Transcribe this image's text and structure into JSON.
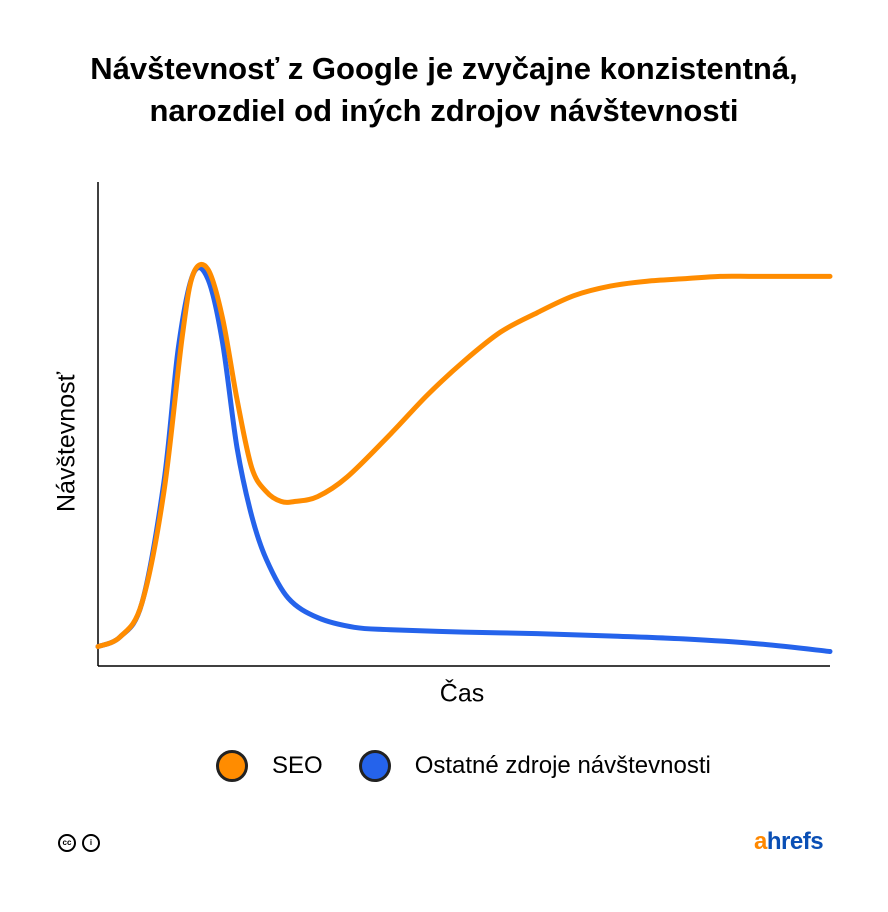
{
  "chart_data": {
    "type": "line",
    "title_lines": [
      "Návštevnosť z Google je zvyčajne konzistentná,",
      "narozdiel od iných zdrojov návštevnosti"
    ],
    "xlabel": "Čas",
    "ylabel": "Návštevnosť",
    "xlim": [
      0,
      100
    ],
    "ylim": [
      0,
      100
    ],
    "grid": false,
    "legend_position": "bottom",
    "series": [
      {
        "name": "SEO",
        "color": "#ff8c00",
        "points": [
          [
            0,
            4
          ],
          [
            3,
            6
          ],
          [
            6,
            13
          ],
          [
            9,
            36
          ],
          [
            11.5,
            68
          ],
          [
            13,
            81
          ],
          [
            15,
            82
          ],
          [
            17,
            72
          ],
          [
            19,
            55
          ],
          [
            21,
            41
          ],
          [
            23,
            36
          ],
          [
            25,
            34
          ],
          [
            27,
            34
          ],
          [
            30,
            35
          ],
          [
            34,
            39
          ],
          [
            40,
            48
          ],
          [
            45,
            56
          ],
          [
            50,
            63
          ],
          [
            55,
            69
          ],
          [
            60,
            73
          ],
          [
            65,
            76.5
          ],
          [
            70,
            78.5
          ],
          [
            75,
            79.5
          ],
          [
            80,
            80
          ],
          [
            85,
            80.5
          ],
          [
            90,
            80.5
          ],
          [
            100,
            80.5
          ]
        ]
      },
      {
        "name": "Ostatné zdroje návštevnosti",
        "color": "#2563eb",
        "points": [
          [
            0,
            4
          ],
          [
            3,
            6
          ],
          [
            6,
            13
          ],
          [
            9,
            38
          ],
          [
            11,
            66
          ],
          [
            13,
            81
          ],
          [
            15,
            80
          ],
          [
            17,
            67
          ],
          [
            19,
            45
          ],
          [
            21,
            31
          ],
          [
            23,
            22
          ],
          [
            26,
            14
          ],
          [
            30,
            10
          ],
          [
            35,
            8
          ],
          [
            40,
            7.5
          ],
          [
            50,
            7
          ],
          [
            60,
            6.7
          ],
          [
            70,
            6.2
          ],
          [
            80,
            5.6
          ],
          [
            90,
            4.6
          ],
          [
            100,
            3
          ]
        ]
      }
    ]
  },
  "credits": {
    "cc_icon": "cc",
    "by_icon": "i"
  },
  "brand": {
    "a": "a",
    "rest": "hrefs",
    "accent_color": "#ff8800",
    "main_color": "#0a4fb5"
  }
}
